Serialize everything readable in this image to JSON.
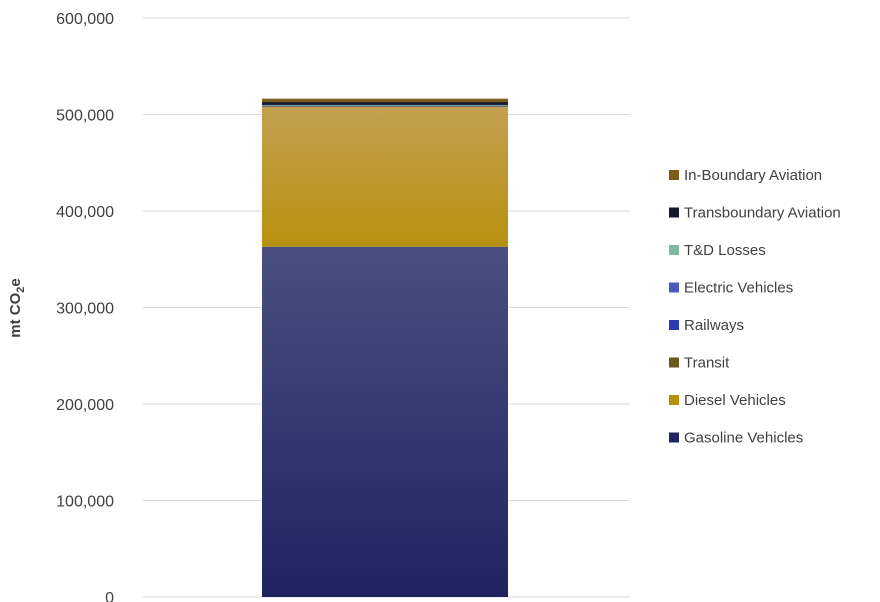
{
  "chart_data": {
    "type": "bar",
    "stacked": true,
    "title": "",
    "xlabel": "",
    "ylabel": "mt CO",
    "ylabel_subscript": "2",
    "ylabel_suffix": "e",
    "ylim": [
      0,
      600000
    ],
    "yticks": [
      0,
      100000,
      200000,
      300000,
      400000,
      500000,
      600000
    ],
    "ytick_labels": [
      "0",
      "100,000",
      "200,000",
      "300,000",
      "400,000",
      "500,000",
      "600,000"
    ],
    "grid": true,
    "legend_position": "right",
    "categories": [
      ""
    ],
    "series": [
      {
        "name": "Gasoline Vehicles",
        "values": [
          363000
        ],
        "color": "#1f2461",
        "color_top": "#4a4f80"
      },
      {
        "name": "Diesel Vehicles",
        "values": [
          145000
        ],
        "color": "#b8900e",
        "color_top": "#c4a050"
      },
      {
        "name": "Transit",
        "values": [
          1000
        ],
        "color": "#6b5a20",
        "color_top": "#6b5a20"
      },
      {
        "name": "Railways",
        "values": [
          300
        ],
        "color": "#2a3bb0",
        "color_top": "#2a3bb0"
      },
      {
        "name": "Electric Vehicles",
        "values": [
          300
        ],
        "color": "#4a5ab8",
        "color_top": "#4a5ab8"
      },
      {
        "name": "T&D Losses",
        "values": [
          300
        ],
        "color": "#7fb8a0",
        "color_top": "#7fb8a0"
      },
      {
        "name": "Transboundary Aviation",
        "values": [
          3000
        ],
        "color": "#15182e",
        "color_top": "#15182e"
      },
      {
        "name": "In-Boundary Aviation",
        "values": [
          3500
        ],
        "color": "#7a5c18",
        "color_top": "#7a5c18"
      }
    ],
    "legend_order": [
      "In-Boundary Aviation",
      "Transboundary Aviation",
      "T&D Losses",
      "Electric Vehicles",
      "Railways",
      "Transit",
      "Diesel Vehicles",
      "Gasoline Vehicles"
    ]
  }
}
